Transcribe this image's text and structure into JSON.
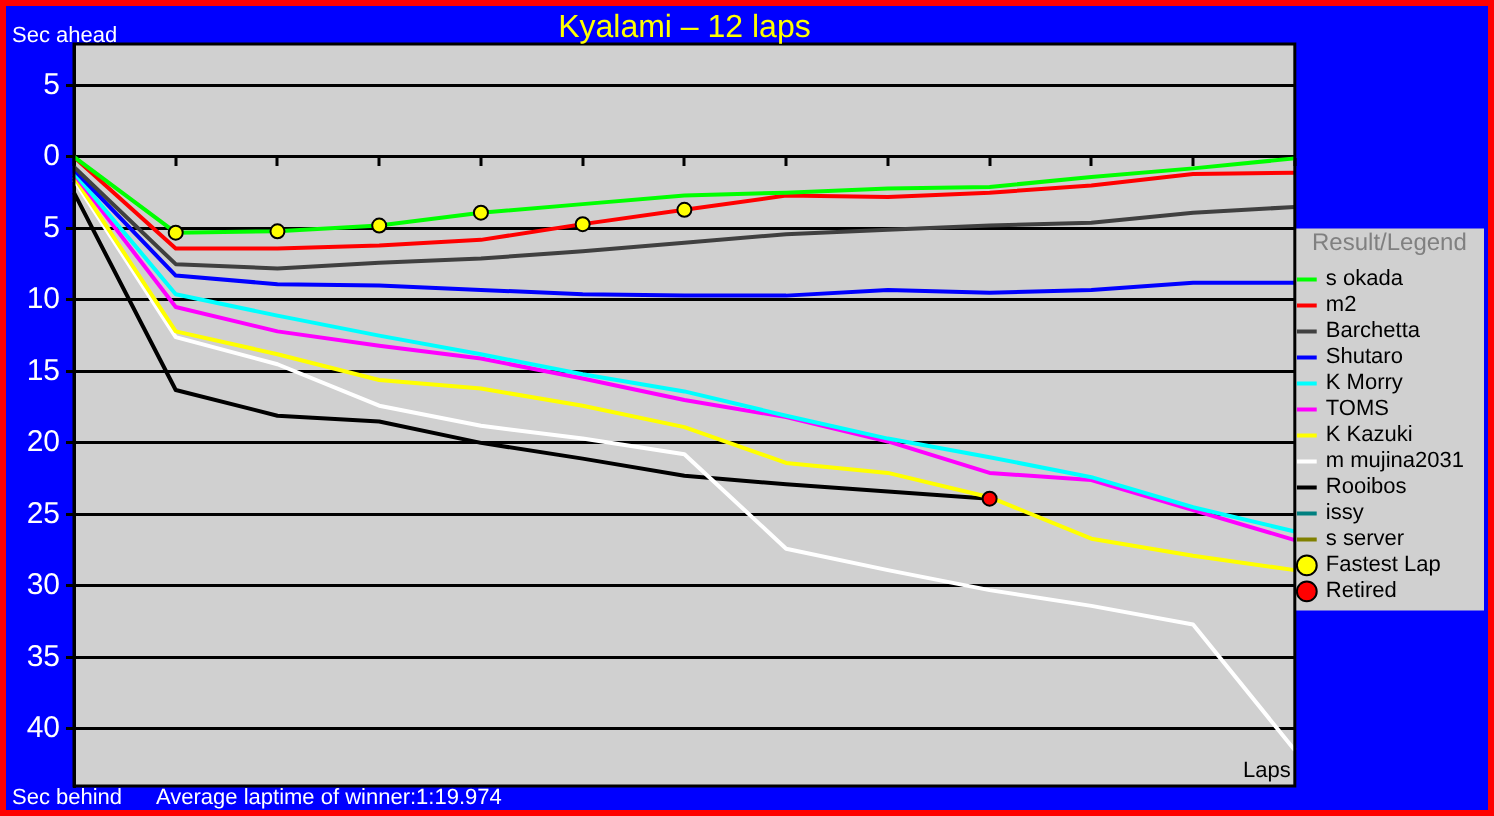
{
  "chart_data": {
    "type": "line",
    "title": "Kyalami – 12 laps",
    "ylabel": "Sec ahead",
    "xlabel": "Laps",
    "legend_title": "Result/Legend",
    "annotations": [
      "Sec behind",
      "Average laptime of winner:1:19.974"
    ],
    "categories": [
      null,
      null,
      null,
      null,
      null,
      null,
      null,
      null,
      null,
      null,
      null,
      null,
      null
    ],
    "ylim": [
      44,
      -7.9
    ],
    "yticks": [
      {
        "value": -5,
        "label": "5"
      },
      0,
      5,
      10,
      15,
      20,
      25,
      30,
      35,
      40
    ],
    "grid": "y",
    "legend": "right",
    "tick_labels": "y",
    "series": [
      {
        "name": "s okada",
        "color": "#00ff00",
        "values": [
          0,
          5.3,
          5.2,
          4.8,
          3.9,
          3.3,
          2.7,
          2.5,
          2.2,
          2.1,
          1.4,
          0.8,
          0.1
        ]
      },
      {
        "name": "m2",
        "color": "#ff0000",
        "values": [
          0,
          6.4,
          6.4,
          6.2,
          5.8,
          4.7,
          3.7,
          2.7,
          2.8,
          2.5,
          2.0,
          1.2,
          1.1
        ]
      },
      {
        "name": "Barchetta",
        "color": "#404040",
        "values": [
          0.7,
          7.5,
          7.8,
          7.4,
          7.1,
          6.6,
          6.0,
          5.4,
          5.1,
          4.8,
          4.6,
          3.9,
          3.5
        ]
      },
      {
        "name": "Shutaro",
        "color": "#0000ff",
        "values": [
          0.9,
          8.3,
          8.9,
          9.0,
          9.3,
          9.6,
          9.7,
          9.7,
          9.3,
          9.5,
          9.3,
          8.8,
          8.8
        ]
      },
      {
        "name": "K Morry",
        "color": "#00ffff",
        "values": [
          1.1,
          9.6,
          11.1,
          12.5,
          13.8,
          15.2,
          16.4,
          18.1,
          19.7,
          21.0,
          22.4,
          24.5,
          26.2
        ]
      },
      {
        "name": "TOMS",
        "color": "#ff00ff",
        "values": [
          1.2,
          10.5,
          12.2,
          13.2,
          14.1,
          15.5,
          17.0,
          18.2,
          19.9,
          22.1,
          22.6,
          24.7,
          26.8
        ]
      },
      {
        "name": "K Kazuki",
        "color": "#ffff00",
        "values": [
          1.4,
          12.2,
          13.8,
          15.6,
          16.2,
          17.4,
          18.9,
          21.4,
          22.1,
          23.8,
          26.7,
          27.9,
          28.9
        ]
      },
      {
        "name": "m mujina2031",
        "color": "#ffffff",
        "values": [
          1.6,
          12.6,
          14.5,
          17.4,
          18.8,
          19.7,
          20.8,
          27.4,
          28.9,
          30.3,
          31.4,
          32.7,
          41.5
        ]
      },
      {
        "name": "Rooibos",
        "color": "#000000",
        "values": [
          2.5,
          16.3,
          18.1,
          18.5,
          20.0,
          21.1,
          22.3,
          22.9,
          23.4,
          23.9,
          null,
          null,
          null
        ]
      },
      {
        "name": "issy",
        "color": "#008080",
        "values": [
          null,
          null,
          null,
          null,
          null,
          null,
          null,
          null,
          null,
          null,
          null,
          null,
          null
        ]
      },
      {
        "name": "s server",
        "color": "#808000",
        "values": [
          null,
          null,
          null,
          null,
          null,
          null,
          null,
          null,
          null,
          null,
          null,
          null,
          null
        ]
      },
      {
        "name": "Fastest Lap",
        "type": "scatter",
        "marker": "circle",
        "color": "#ffff00",
        "values": [
          null,
          5.3,
          5.2,
          4.8,
          3.9,
          4.7,
          3.7,
          null,
          null,
          null,
          null,
          null,
          null
        ]
      },
      {
        "name": "Retired",
        "type": "scatter",
        "marker": "circle",
        "color": "#ff0000",
        "values": [
          null,
          null,
          null,
          null,
          null,
          null,
          null,
          null,
          null,
          23.9,
          null,
          null,
          null
        ]
      }
    ]
  }
}
